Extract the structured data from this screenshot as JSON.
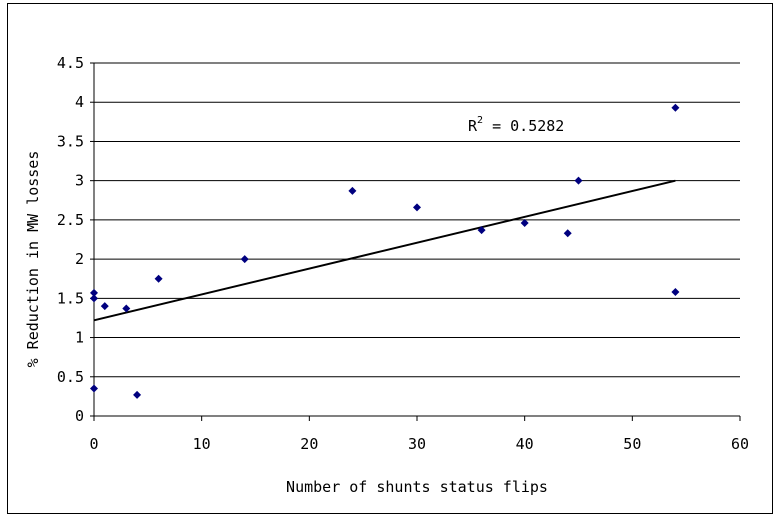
{
  "chart_data": {
    "type": "scatter",
    "title": "",
    "xlabel": "Number of shunts status flips",
    "ylabel": "% Reduction in MW losses",
    "xlim": [
      0,
      60
    ],
    "ylim": [
      0,
      4.5
    ],
    "x_ticks": [
      "0",
      "10",
      "20",
      "30",
      "40",
      "50",
      "60"
    ],
    "y_ticks": [
      "0",
      "0.5",
      "1",
      "1.5",
      "2",
      "2.5",
      "3",
      "3.5",
      "4",
      "4.5"
    ],
    "grid": "horizontal",
    "legend": "none",
    "points": [
      {
        "x": 0,
        "y": 1.57
      },
      {
        "x": 0,
        "y": 1.5
      },
      {
        "x": 0,
        "y": 0.35
      },
      {
        "x": 1,
        "y": 1.4
      },
      {
        "x": 3,
        "y": 1.37
      },
      {
        "x": 4,
        "y": 0.27
      },
      {
        "x": 6,
        "y": 1.75
      },
      {
        "x": 14,
        "y": 2.0
      },
      {
        "x": 24,
        "y": 2.87
      },
      {
        "x": 30,
        "y": 2.66
      },
      {
        "x": 36,
        "y": 2.37
      },
      {
        "x": 40,
        "y": 2.46
      },
      {
        "x": 44,
        "y": 2.33
      },
      {
        "x": 45,
        "y": 3.0
      },
      {
        "x": 54,
        "y": 3.93
      },
      {
        "x": 54,
        "y": 1.58
      }
    ],
    "trendline": {
      "type": "linear",
      "x": [
        0,
        54
      ],
      "y": [
        1.22,
        3.0
      ]
    },
    "annotation": {
      "prefix": "R",
      "superscript": "2",
      "suffix": " = 0.5282"
    },
    "colors": {
      "marker": "#00007f",
      "trendline": "#000000",
      "grid": "#000000"
    }
  }
}
